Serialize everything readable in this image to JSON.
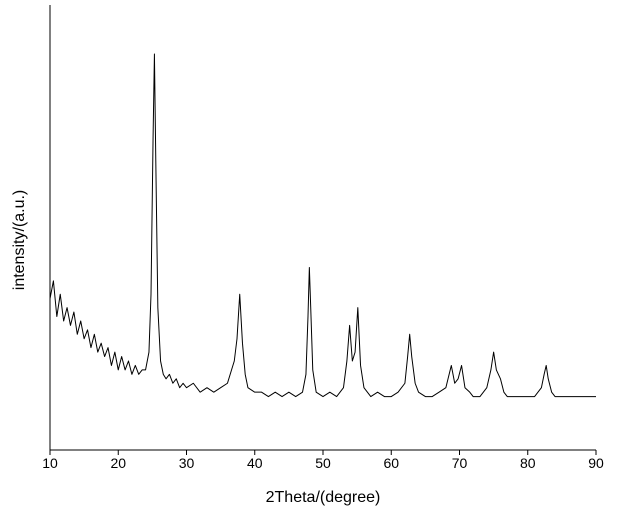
{
  "chart_data": {
    "type": "line",
    "x_label": "2Theta/(degree)",
    "y_label": "intensity/(a.u.)",
    "xlim": [
      10,
      90
    ],
    "xticks": [
      10,
      20,
      30,
      40,
      50,
      60,
      70,
      80,
      90
    ],
    "ylim": [
      0,
      100
    ],
    "series": [
      {
        "color": "#000000",
        "x": [
          10,
          10.5,
          11,
          11.5,
          12,
          12.5,
          13,
          13.5,
          14,
          14.5,
          15,
          15.5,
          16,
          16.5,
          17,
          17.5,
          18,
          18.5,
          19,
          19.5,
          20,
          20.5,
          21,
          21.5,
          22,
          22.5,
          23,
          23.5,
          24,
          24.5,
          24.8,
          25.1,
          25.3,
          25.5,
          25.8,
          26.2,
          26.6,
          27,
          27.5,
          28,
          28.5,
          29,
          29.5,
          30,
          31,
          32,
          33,
          34,
          35,
          36,
          36.6,
          37,
          37.4,
          37.8,
          38.2,
          38.6,
          39,
          40,
          41,
          42,
          43,
          44,
          45,
          46,
          47,
          47.5,
          47.8,
          48,
          48.2,
          48.5,
          49,
          50,
          51,
          52,
          53,
          53.5,
          53.9,
          54.3,
          54.7,
          55.1,
          55.5,
          56,
          57,
          58,
          59,
          60,
          61,
          62,
          62.4,
          62.7,
          63,
          63.5,
          64,
          65,
          66,
          67,
          68,
          68.8,
          69.3,
          69.8,
          70.3,
          70.8,
          71.5,
          72,
          73,
          74,
          74.6,
          75,
          75.4,
          76,
          76.5,
          77,
          78,
          79,
          80,
          81,
          82,
          82.4,
          82.7,
          83,
          83.5,
          84,
          85,
          86,
          87,
          88,
          89,
          90
        ],
        "values": [
          34,
          38,
          30,
          35,
          29,
          32,
          28,
          31,
          26,
          29,
          25,
          27,
          23,
          26,
          22,
          24,
          21,
          23,
          19,
          22,
          18,
          21,
          18,
          20,
          17,
          19,
          17,
          18,
          18,
          22,
          35,
          70,
          89,
          65,
          32,
          20,
          17,
          16,
          17,
          15,
          16,
          14,
          15,
          14,
          15,
          13,
          14,
          13,
          14,
          15,
          18,
          20,
          25,
          35,
          24,
          17,
          14,
          13,
          13,
          12,
          13,
          12,
          13,
          12,
          13,
          17,
          30,
          41,
          32,
          18,
          13,
          12,
          13,
          12,
          14,
          20,
          28,
          20,
          22,
          32,
          19,
          14,
          12,
          13,
          12,
          12,
          13,
          15,
          21,
          26,
          21,
          15,
          13,
          12,
          12,
          13,
          14,
          19,
          15,
          16,
          19,
          14,
          13,
          12,
          12,
          14,
          18,
          22,
          18,
          16,
          13,
          12,
          12,
          12,
          12,
          12,
          14,
          17,
          19,
          16,
          13,
          12,
          12,
          12,
          12,
          12,
          12,
          12
        ]
      }
    ]
  }
}
